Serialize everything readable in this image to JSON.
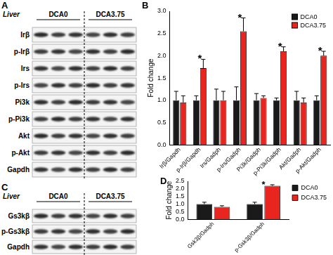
{
  "figure": {
    "panels": [
      {
        "letter": "A",
        "type": "blot",
        "tissue": "Liver",
        "groups": [
          "DCA0",
          "DCA3.75"
        ],
        "rows": [
          "Irβ",
          "p-Irβ",
          "Irs",
          "p-Irs",
          "Pi3k",
          "p-Pi3k",
          "Akt",
          "p-Akt",
          "Gapdh"
        ]
      },
      {
        "letter": "C",
        "type": "blot",
        "tissue": "Liver",
        "groups": [
          "DCA0",
          "DCA3.75"
        ],
        "rows": [
          "Gs3kβ",
          "p-Gs3kβ",
          "Gapdh"
        ]
      }
    ]
  },
  "chart_data": [
    {
      "letter": "B",
      "type": "bar",
      "y_label": "Fold change",
      "categories": [
        "Irβ/Gapdh",
        "p-Irβ/Gapdh",
        "Irs/Gadph",
        "p-Irs/Gadph",
        "Pi3k/Gadph",
        "p-Pi3k/Gadph",
        "Akt/Gadph",
        "p-Akt/Gadph"
      ],
      "series": [
        {
          "name": "DCA0",
          "color": "#1a1a1a",
          "values": [
            1,
            1,
            1,
            1,
            1,
            1,
            1,
            1
          ],
          "errors": [
            0.2,
            0.1,
            0.25,
            0.3,
            0.15,
            0.05,
            0.2,
            0.1
          ]
        },
        {
          "name": "DCA3.75",
          "color": "#e8251f",
          "values": [
            0.95,
            1.72,
            1.0,
            2.55,
            1.05,
            2.1,
            0.95,
            2.0
          ],
          "errors": [
            0.15,
            0.2,
            0.2,
            0.3,
            0.05,
            0.1,
            0.1,
            0.1
          ]
        }
      ],
      "ylim": [
        0,
        3
      ],
      "yticks": [
        {
          "value": 0,
          "label": "0.0"
        },
        0.5,
        {
          "value": 1,
          "label": "1.0"
        },
        1.5,
        {
          "value": 2,
          "label": "2.0"
        },
        2.5,
        {
          "value": 3,
          "label": "3.0"
        }
      ],
      "grid": false,
      "legend": "upper right",
      "annotations": [
        {
          "category": "p-Irβ/Gapdh",
          "text": "*"
        },
        {
          "category": "p-Irs/Gadph",
          "text": "*"
        },
        {
          "category": "p-Pi3k/Gadph",
          "text": "*"
        },
        {
          "category": "p-Akt/Gadph",
          "text": "*"
        }
      ]
    },
    {
      "letter": "D",
      "type": "bar",
      "y_label": "Fold change",
      "categories": [
        "Gsk3β/Gadph",
        "p-Gsk3β/Gadph"
      ],
      "series": [
        {
          "name": "DCA0",
          "color": "#1a1a1a",
          "values": [
            1,
            1
          ],
          "errors": [
            0.12,
            0.12
          ]
        },
        {
          "name": "DCA3.75",
          "color": "#e8251f",
          "values": [
            0.82,
            2.2
          ],
          "errors": [
            0.07,
            0.07
          ]
        }
      ],
      "ylim": [
        0,
        2.5
      ],
      "yticks": [
        {
          "value": 0,
          "label": "0.0"
        },
        0.5,
        {
          "value": 1,
          "label": "1.0"
        },
        1.5,
        {
          "value": 2,
          "label": "2.0"
        },
        2.5
      ],
      "grid": false,
      "legend": "right",
      "annotations": [
        {
          "category": "p-Gsk3β/Gadph",
          "text": "*"
        }
      ]
    }
  ]
}
